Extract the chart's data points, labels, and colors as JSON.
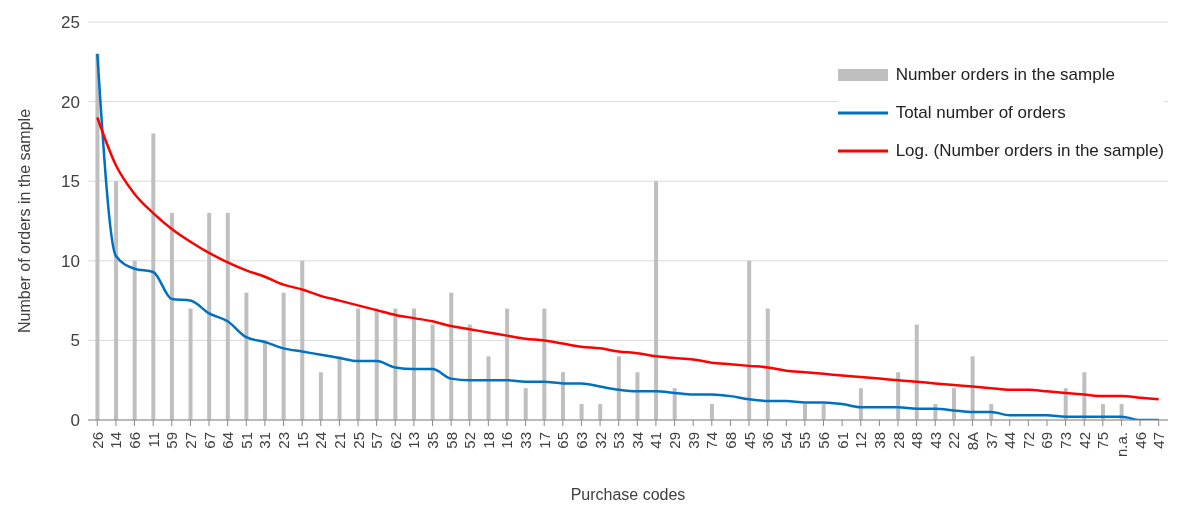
{
  "chart_data": {
    "type": "bar",
    "xlabel": "Purchase codes",
    "ylabel": "Number of orders  in the sample",
    "categories": [
      "26",
      "14",
      "66",
      "11",
      "59",
      "27",
      "67",
      "64",
      "51",
      "31",
      "23",
      "15",
      "24",
      "21",
      "25",
      "57",
      "62",
      "13",
      "35",
      "58",
      "52",
      "18",
      "16",
      "33",
      "17",
      "65",
      "63",
      "32",
      "53",
      "34",
      "41",
      "29",
      "39",
      "74",
      "68",
      "45",
      "36",
      "54",
      "55",
      "56",
      "61",
      "12",
      "38",
      "28",
      "48",
      "43",
      "22",
      "8A",
      "37",
      "44",
      "72",
      "69",
      "73",
      "42",
      "75",
      "n.a.",
      "46",
      "47"
    ],
    "series": [
      {
        "name": "Number orders in the sample",
        "color": "#bfbfbf",
        "values": [
          23,
          15,
          10,
          18,
          13,
          7,
          13,
          13,
          8,
          5,
          8,
          10,
          3,
          4,
          7,
          7,
          7,
          7,
          6,
          8,
          6,
          4,
          7,
          2,
          7,
          3,
          1,
          1,
          4,
          3,
          15,
          2,
          0,
          1,
          0,
          10,
          7,
          0,
          1,
          1,
          0,
          2,
          0,
          3,
          6,
          1,
          2,
          4,
          1,
          0,
          0,
          0,
          2,
          3,
          1,
          1,
          0,
          0
        ]
      },
      {
        "name": "Total number of orders",
        "type": "line",
        "color": "#0070c0",
        "values": [
          23,
          10.3,
          9.5,
          9.3,
          7.6,
          7.5,
          6.7,
          6.2,
          5.2,
          4.9,
          4.5,
          4.3,
          4.1,
          3.9,
          3.7,
          3.7,
          3.3,
          3.2,
          3.2,
          2.6,
          2.5,
          2.5,
          2.5,
          2.4,
          2.4,
          2.3,
          2.3,
          2.1,
          1.9,
          1.8,
          1.8,
          1.7,
          1.6,
          1.6,
          1.5,
          1.3,
          1.2,
          1.2,
          1.1,
          1.1,
          1.0,
          0.8,
          0.8,
          0.8,
          0.7,
          0.7,
          0.6,
          0.5,
          0.5,
          0.3,
          0.3,
          0.3,
          0.2,
          0.2,
          0.2,
          0.2,
          0,
          0
        ]
      },
      {
        "name": "Log. (Number orders in the sample)",
        "type": "line",
        "color": "#ff0000",
        "values": [
          19.0,
          16.0,
          14.2,
          13.0,
          12.0,
          11.2,
          10.5,
          9.9,
          9.4,
          9.0,
          8.5,
          8.2,
          7.8,
          7.5,
          7.2,
          6.9,
          6.6,
          6.4,
          6.2,
          5.9,
          5.7,
          5.5,
          5.3,
          5.1,
          5.0,
          4.8,
          4.6,
          4.5,
          4.3,
          4.2,
          4.0,
          3.9,
          3.8,
          3.6,
          3.5,
          3.4,
          3.3,
          3.1,
          3.0,
          2.9,
          2.8,
          2.7,
          2.6,
          2.5,
          2.4,
          2.3,
          2.2,
          2.1,
          2.0,
          1.9,
          1.9,
          1.8,
          1.7,
          1.6,
          1.5,
          1.5,
          1.4,
          1.3
        ]
      }
    ],
    "ylim": [
      0,
      25
    ],
    "yticks": [
      0,
      5,
      10,
      15,
      20,
      25
    ],
    "grid": "y",
    "legend": "top right",
    "marker": "none",
    "line_style": "solid"
  }
}
